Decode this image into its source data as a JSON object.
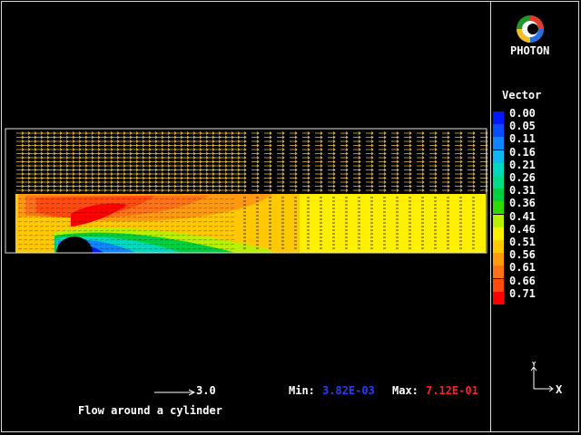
{
  "app": {
    "logo_text": "PHOTON"
  },
  "legend": {
    "title": "Vector",
    "entries": [
      {
        "label": "0.00",
        "color": "#0018ff"
      },
      {
        "label": "0.05",
        "color": "#0a4cff"
      },
      {
        "label": "0.11",
        "color": "#0f86ff"
      },
      {
        "label": "0.16",
        "color": "#10b8f0"
      },
      {
        "label": "0.21",
        "color": "#00d8c0"
      },
      {
        "label": "0.26",
        "color": "#00dd88"
      },
      {
        "label": "0.31",
        "color": "#00d040"
      },
      {
        "label": "0.36",
        "color": "#30d800"
      },
      {
        "label": "0.41",
        "color": "#b8f000"
      },
      {
        "label": "0.46",
        "color": "#fff000"
      },
      {
        "label": "0.51",
        "color": "#ffc800"
      },
      {
        "label": "0.56",
        "color": "#ff9a10"
      },
      {
        "label": "0.61",
        "color": "#ff7218"
      },
      {
        "label": "0.66",
        "color": "#ff4a10"
      },
      {
        "label": "0.71",
        "color": "#ff0000"
      }
    ]
  },
  "scale": {
    "label": "3.0"
  },
  "plot": {
    "title": "Flow around a cylinder"
  },
  "range": {
    "min_label": "Min:",
    "min_value": "3.82E-03",
    "min_color": "#2a3cff",
    "max_label": "Max:",
    "max_value": "7.12E-01",
    "max_color": "#ff2020"
  },
  "axes": {
    "x_label": "X",
    "y_label": "Y"
  }
}
